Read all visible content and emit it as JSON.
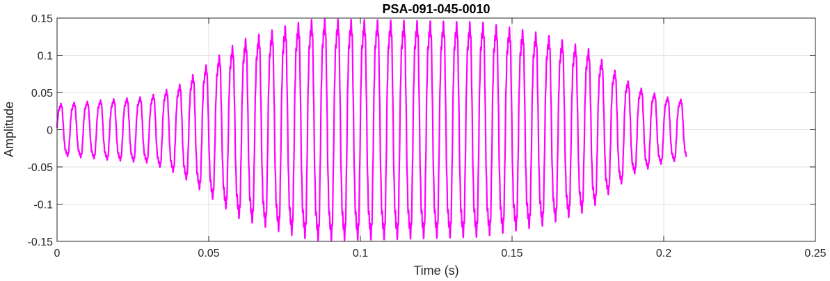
{
  "chart_data": {
    "type": "line",
    "title": "PSA-091-045-0010",
    "xlabel": "Time (s)",
    "ylabel": "Amplitude",
    "xlim": [
      0,
      0.25
    ],
    "ylim": [
      -0.15,
      0.15
    ],
    "grid": true,
    "line_color": "#ff00ff",
    "x_ticks": [
      0,
      0.05,
      0.1,
      0.15,
      0.2,
      0.25
    ],
    "x_tick_labels": [
      "0",
      "0.05",
      "0.1",
      "0.15",
      "0.2",
      "0.25"
    ],
    "y_ticks": [
      -0.15,
      -0.1,
      -0.05,
      0,
      0.05,
      0.1,
      0.15
    ],
    "y_tick_labels": [
      "-0.15",
      "-0.1",
      "-0.05",
      "0",
      "0.05",
      "0.1",
      "0.15"
    ],
    "series": [
      {
        "signal": {
          "duration": 0.2075,
          "frequency_hz": 230,
          "envelope": [
            [
              0,
              0.035
            ],
            [
              0.02,
              0.042
            ],
            [
              0.03,
              0.045
            ],
            [
              0.04,
              0.06
            ],
            [
              0.05,
              0.09
            ],
            [
              0.06,
              0.12
            ],
            [
              0.075,
              0.14
            ],
            [
              0.085,
              0.15
            ],
            [
              0.11,
              0.148
            ],
            [
              0.14,
              0.145
            ],
            [
              0.16,
              0.13
            ],
            [
              0.175,
              0.11
            ],
            [
              0.19,
              0.06
            ],
            [
              0.2,
              0.045
            ],
            [
              0.2075,
              0.04
            ]
          ]
        }
      }
    ]
  }
}
